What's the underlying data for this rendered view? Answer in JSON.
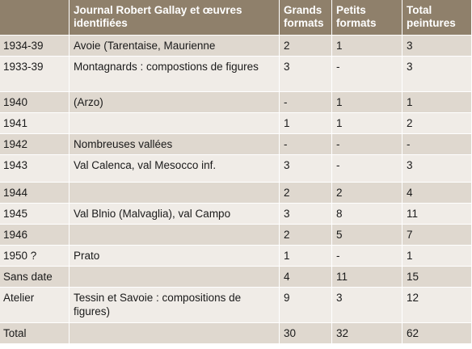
{
  "table": {
    "headers": [
      "",
      "Journal Robert Gallay et œuvres identifiées",
      "Grands formats",
      "Petits formats",
      "Total peintures"
    ],
    "rows": [
      [
        "1934-39",
        "Avoie (Tarentaise, Maurienne",
        "2",
        "1",
        "3"
      ],
      [
        "1933-39",
        "Montagnards : compostions de figures",
        "3",
        "-",
        "3"
      ],
      [
        "1940",
        "(Arzo)",
        "-",
        "1",
        "1"
      ],
      [
        "1941",
        "",
        "1",
        "1",
        "2"
      ],
      [
        "1942",
        "Nombreuses vallées",
        "-",
        "-",
        "-"
      ],
      [
        "1943",
        "Val Calenca, val Mesocco inf.",
        "3",
        "-",
        "3"
      ],
      [
        "1944",
        "",
        "2",
        "2",
        "4"
      ],
      [
        "1945",
        "Val Blnio (Malvaglia), val Campo",
        "3",
        "8",
        "11"
      ],
      [
        "1946",
        "",
        "2",
        "5",
        "7"
      ],
      [
        "1950 ?",
        "Prato",
        "1",
        "-",
        "1"
      ],
      [
        "Sans date",
        "",
        "4",
        "11",
        "15"
      ],
      [
        "Atelier",
        "Tessin et Savoie : compositions de figures)",
        "9",
        "3",
        "12"
      ],
      [
        "Total",
        "",
        "30",
        "32",
        "62"
      ]
    ],
    "colors": {
      "header": "#8f806b",
      "row_dark": "#dfd8cf",
      "row_light": "#f0ece7"
    }
  }
}
